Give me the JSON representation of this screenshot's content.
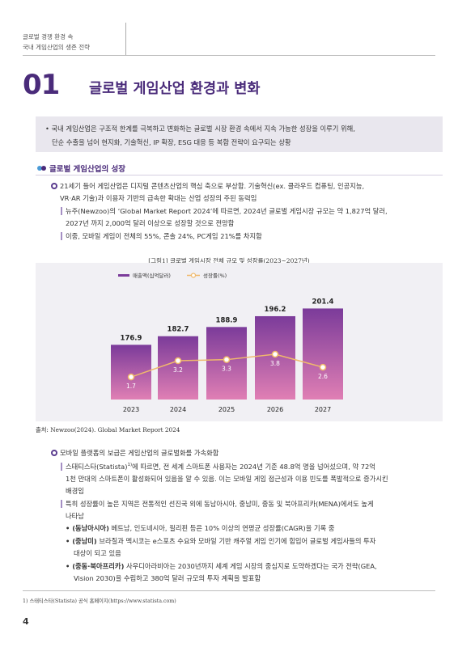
{
  "header": {
    "line1": "글로벌 경쟁 환경 속",
    "line2": "국내 게임산업의 생존 전략"
  },
  "section": {
    "number": "01",
    "title": "글로벌 게임산업 환경과 변화"
  },
  "summary": {
    "line1": "• 국내 게임산업은 구조적 한계를 극복하고 변화하는 글로벌 시장 환경 속에서 지속 가능한 성장을 이루기 위해,",
    "line2": "단순 수출을 넘어 현지화, 기술혁신, IP 확장, ESG 대응 등 복합 전략이 요구되는 상황"
  },
  "heading1": "글로벌 게임산업의 성장",
  "block1": {
    "main_l1": "21세기 들어 게임산업은 디지털 콘텐츠산업의 핵심 축으로 부상함. 기술혁신(ex. 클라우드 컴퓨팅, 인공지능,",
    "main_l2": "VR·AR 기술)과 이용자 기반의 급속한 확대는 산업 성장의 주된 동력임",
    "sub1_l1": "뉴주(Newzoo)의 ‘Global Market Report 2024’에 따르면, 2024년 글로벌 게임시장 규모는 약 1,827억 달러,",
    "sub1_l2": "2027년 까지 2,000억 달러 이상으로 성장할 것으로 전망함",
    "sub2": "이중, 모바일 게임이 전체의 55%, 콘솔 24%, PC게임 21%를 차지함"
  },
  "figure": {
    "caption": "[그림1] 글로벌 게임시장 전체 규모 및 성장률(2023~2027년)",
    "source": "출처: Newzoo(2024). Global Market Report 2024"
  },
  "chart_data": {
    "type": "bar",
    "categories": [
      "2023",
      "2024",
      "2025",
      "2026",
      "2027"
    ],
    "series": [
      {
        "name": "매출액(십억달러)",
        "type": "bar",
        "values": [
          176.9,
          182.7,
          188.9,
          196.2,
          201.4
        ],
        "color": "#8b3f9d"
      },
      {
        "name": "성장률(%)",
        "type": "line",
        "values": [
          1.7,
          3.2,
          3.3,
          3.8,
          2.6
        ],
        "color": "#f0b96b"
      }
    ],
    "bar_labels": [
      "176.9",
      "182.7",
      "188.9",
      "196.2",
      "201.4"
    ],
    "line_labels": [
      "1.7",
      "3.2",
      "3.3",
      "3.8",
      "2.6"
    ],
    "legend": "top-left",
    "grid": false
  },
  "block2": {
    "main": "모바일 플랫폼의 보급은 게임산업의 글로벌화를 가속화함",
    "sub1_l1a": "스태티스타(Statista)",
    "sub1_l1_sup": "1)",
    "sub1_l1b": "에 따르면, 전 세계 스마트폰 사용자는 2024년 기준 48.8억 명을 넘어섰으며, 약 72억",
    "sub1_l2": "1천 만대의 스마트폰이 활성화되어 있음을 알 수 있음. 이는 모바일 게임 접근성과 이용 빈도를 폭발적으로 증가시킨",
    "sub1_l3": "배경임",
    "sub2_l1": "특히 성장률이 높은 지역은 전통적인 선진국 외에 동남아시아, 중남미, 중동 및 북아프리카(MENA)에서도 높게",
    "sub2_l2": "나타남",
    "b1_bold": "• (동남아시아)",
    "b1_text": " 베트남, 인도네시아, 필리핀 등은 10% 이상의 연평균 성장률(CAGR)을 기록 중",
    "b2_bold": "• (중남미)",
    "b2_text": " 브라질과 멕시코는 e스포츠 수요와 모바일 기반 캐주얼 게임 인기에 힘입어 글로벌 게임사들의 투자",
    "b2_l2": "대상이 되고 있음",
    "b3_bold": "• (중동·북아프리카)",
    "b3_text": " 사우디아라비아는 2030년까지 세계 게임 시장의 중심지로 도약하겠다는 국가 전략(GEA,",
    "b3_l2": "Vision 2030)을 수립하고 380억 달러 규모의 투자 계획을 발표함"
  },
  "footnote": "1) 스태티스타(Statista) 공식 홈페이지(https://www.statista.com)",
  "page_number": "4"
}
